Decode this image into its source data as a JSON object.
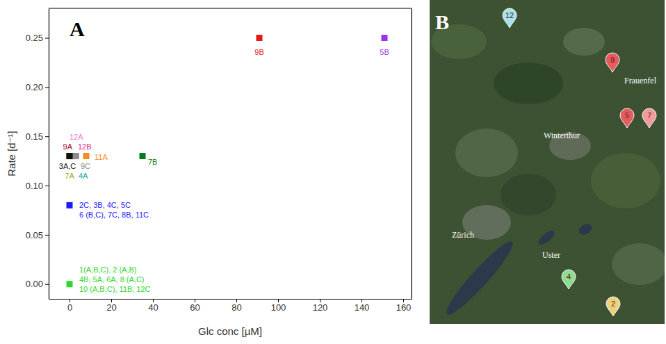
{
  "chart_data": {
    "type": "scatter",
    "panel": "A",
    "x_label": "Glc conc [µM]",
    "y_label": "Rate [d⁻¹]",
    "xlim": [
      -10,
      164
    ],
    "ylim": [
      -0.015,
      0.28
    ],
    "xticks": [
      0,
      20,
      40,
      60,
      80,
      100,
      120,
      140,
      160
    ],
    "yticks": [
      {
        "value": 0,
        "label": "0.00"
      },
      0.05,
      {
        "value": 0.1,
        "label": "0.10"
      },
      0.15,
      {
        "value": 0.2,
        "label": "0.20"
      },
      0.25
    ],
    "grid": false,
    "marker": "square",
    "series": [
      {
        "name": "9B",
        "color": "#e8161d",
        "x": [
          91
        ],
        "values": [
          0.25
        ]
      },
      {
        "name": "5B",
        "color": "#9a33f0",
        "x": [
          151
        ],
        "values": [
          0.25
        ]
      },
      {
        "name": "7B",
        "color": "#0b7a1a",
        "x": [
          35
        ],
        "values": [
          0.13
        ]
      },
      {
        "name": "11A",
        "color": "#f58a1f",
        "x": [
          8
        ],
        "values": [
          0.13
        ]
      },
      {
        "name": "12A",
        "color": "#f27ad0",
        "x": [
          1
        ],
        "values": [
          0.13
        ]
      },
      {
        "name": "9A",
        "color": "#9c0a1e",
        "x": [
          0
        ],
        "values": [
          0.13
        ]
      },
      {
        "name": "12B",
        "color": "#e0208e",
        "x": [
          3
        ],
        "values": [
          0.13
        ]
      },
      {
        "name": "7A",
        "color": "#a3a313",
        "x": [
          0
        ],
        "values": [
          0.13
        ]
      },
      {
        "name": "4A",
        "color": "#13a39a",
        "x": [
          2
        ],
        "values": [
          0.13
        ]
      },
      {
        "name": "9C",
        "color": "#8c8c8c",
        "x": [
          3
        ],
        "values": [
          0.13
        ]
      },
      {
        "name": "3A,C",
        "color": "#111111",
        "x": [
          0
        ],
        "values": [
          0.13
        ]
      },
      {
        "name": "2C, 3B, 4C, 5C\n6 (B,C), 7C, 8B, 11C",
        "color": "#1a1aff",
        "x": [
          0
        ],
        "values": [
          0.08
        ]
      },
      {
        "name": "1(A,B,C), 2 (A,B)\n4B, 5A, 6A, 8 (A,C)\n10 (A,B,C), 11B, 12C",
        "color": "#2fd62f",
        "x": [
          0
        ],
        "values": [
          0
        ]
      }
    ]
  },
  "map": {
    "panel": "B",
    "places": [
      "Zürich",
      "Winterthur",
      "Uster",
      "Frauenfel"
    ],
    "sites": [
      {
        "label": "12",
        "color": "#a6e2ec"
      },
      {
        "label": "9",
        "color": "#e65c5c"
      },
      {
        "label": "5",
        "color": "#e65c5c"
      },
      {
        "label": "7",
        "color": "#f29a9a"
      },
      {
        "label": "4",
        "color": "#8fdc8f"
      },
      {
        "label": "2",
        "color": "#ead27e"
      }
    ]
  }
}
